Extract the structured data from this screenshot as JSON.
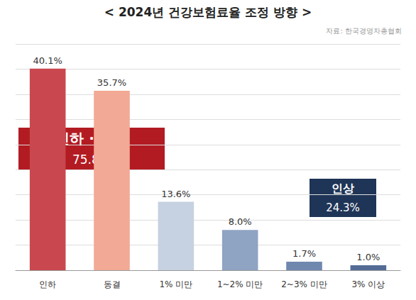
{
  "chart_data": {
    "type": "bar",
    "title": "< 2024년 건강보험료율 조정 방향 >",
    "source": "자료: 한국경영자총협회",
    "categories": [
      "인하",
      "동결",
      "1% 미만",
      "1~2% 미만",
      "2~3% 미만",
      "3% 이상"
    ],
    "values": [
      40.1,
      35.7,
      13.6,
      8.0,
      1.7,
      1.0
    ],
    "value_labels": [
      "40.1%",
      "35.7%",
      "13.6%",
      "8.0%",
      "1.7%",
      "1.0%"
    ],
    "colors": [
      "#c9474f",
      "#f2a996",
      "#c6d1e1",
      "#8fa3c2",
      "#7088ae",
      "#536c96"
    ],
    "ylim": [
      0,
      45
    ],
    "yticks": [
      0,
      5,
      10,
      15,
      20,
      25,
      30,
      35,
      40,
      45
    ],
    "grid": true,
    "data_labels": true,
    "tick_labels": "x",
    "annotations": [
      {
        "lines": [
          "인하 · 동결",
          "75.8%"
        ],
        "color": "#b31b22"
      },
      {
        "lines": [
          "인상",
          "24.3%"
        ],
        "color": "#1f3557"
      }
    ]
  }
}
